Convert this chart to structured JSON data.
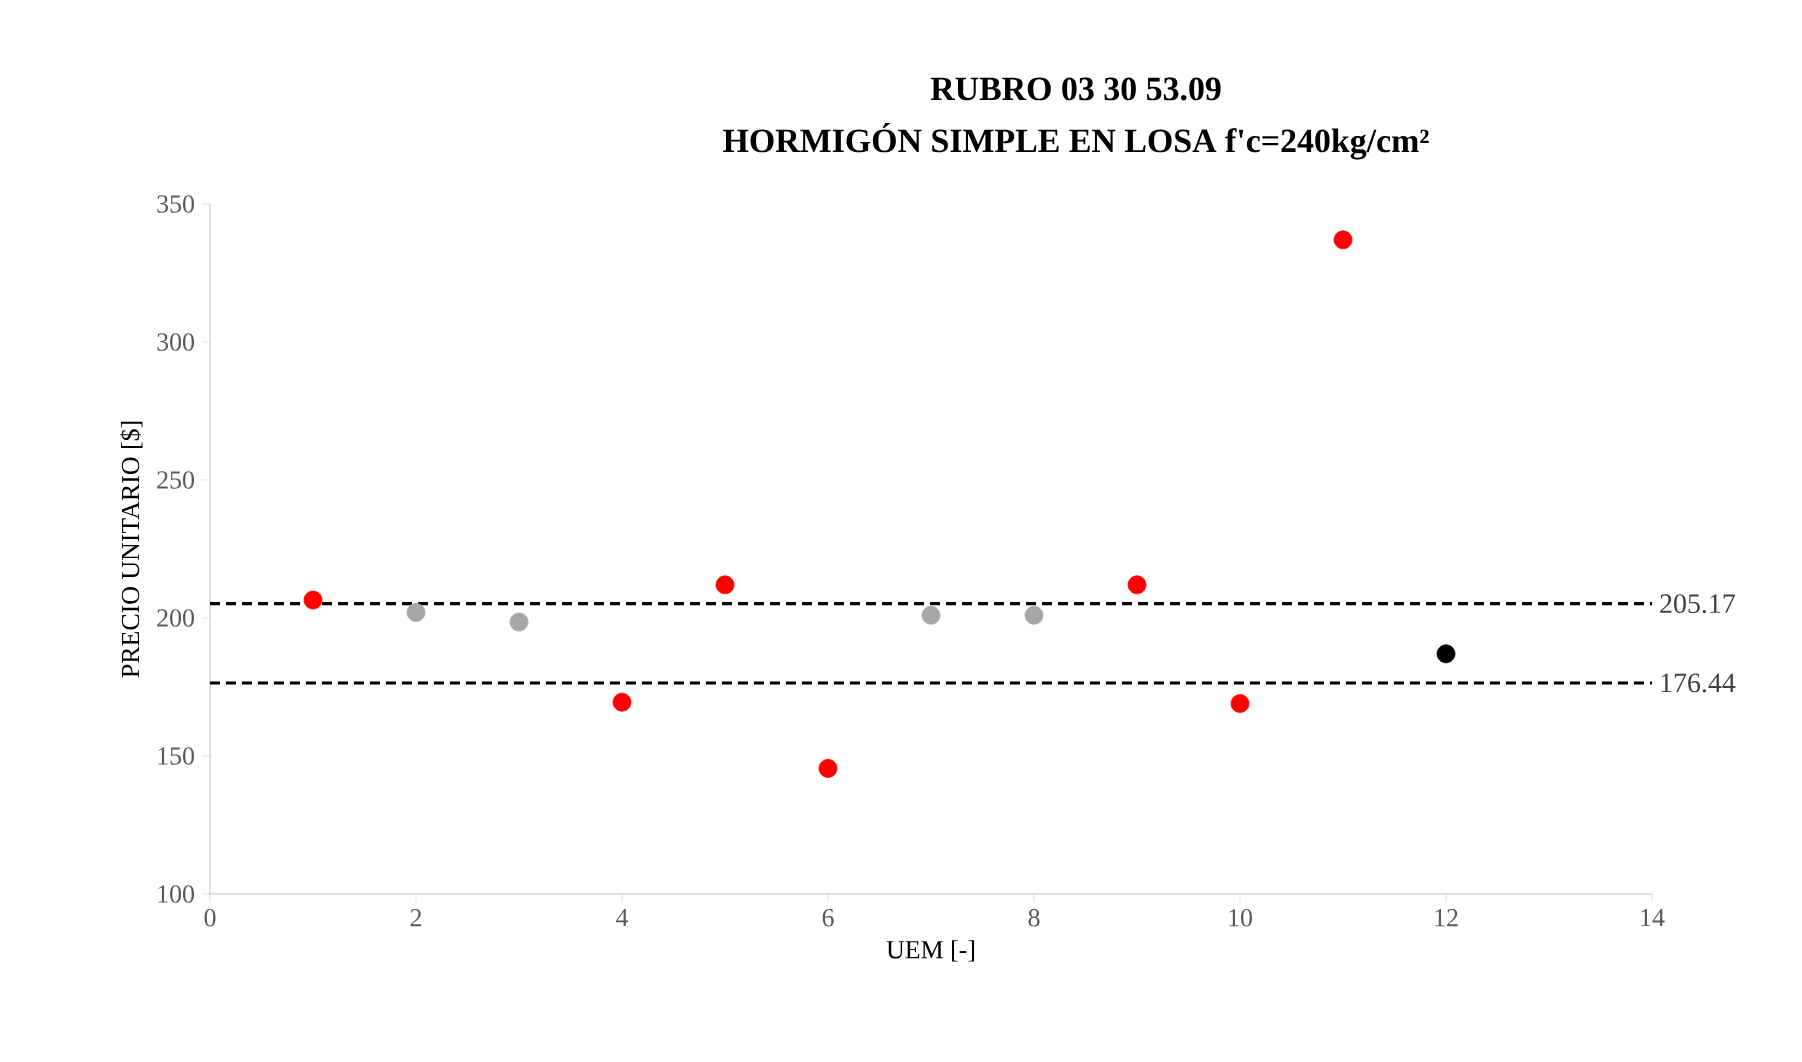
{
  "chart_data": {
    "type": "scatter",
    "title": "RUBRO 03 30 53.09",
    "subtitle": "HORMIGÓN SIMPLE EN LOSA f'c=240kg/cm²",
    "xlabel": "UEM [-]",
    "ylabel": "PRECIO UNITARIO [$]",
    "x": [
      1,
      2,
      3,
      4,
      5,
      6,
      7,
      8,
      9,
      10,
      11,
      12
    ],
    "values": [
      206.5,
      202,
      198.5,
      169.5,
      212,
      145.5,
      201,
      201,
      212,
      169,
      337,
      187
    ],
    "colors": [
      "#ff0000",
      "#a6a6a6",
      "#a6a6a6",
      "#ff0000",
      "#ff0000",
      "#ff0000",
      "#a6a6a6",
      "#a6a6a6",
      "#ff0000",
      "#ff0000",
      "#ff0000",
      "#000000"
    ],
    "xlim": [
      0,
      14
    ],
    "ylim": [
      100,
      350
    ],
    "xticks": [
      0,
      2,
      4,
      6,
      8,
      10,
      12,
      14
    ],
    "yticks": [
      100,
      150,
      200,
      250,
      300,
      350
    ],
    "ref_lines": [
      {
        "axis": "y",
        "value": 205.17,
        "label": "205.17",
        "line_style": "dashed"
      },
      {
        "axis": "y",
        "value": 176.44,
        "label": "176.44",
        "line_style": "dashed"
      }
    ]
  }
}
